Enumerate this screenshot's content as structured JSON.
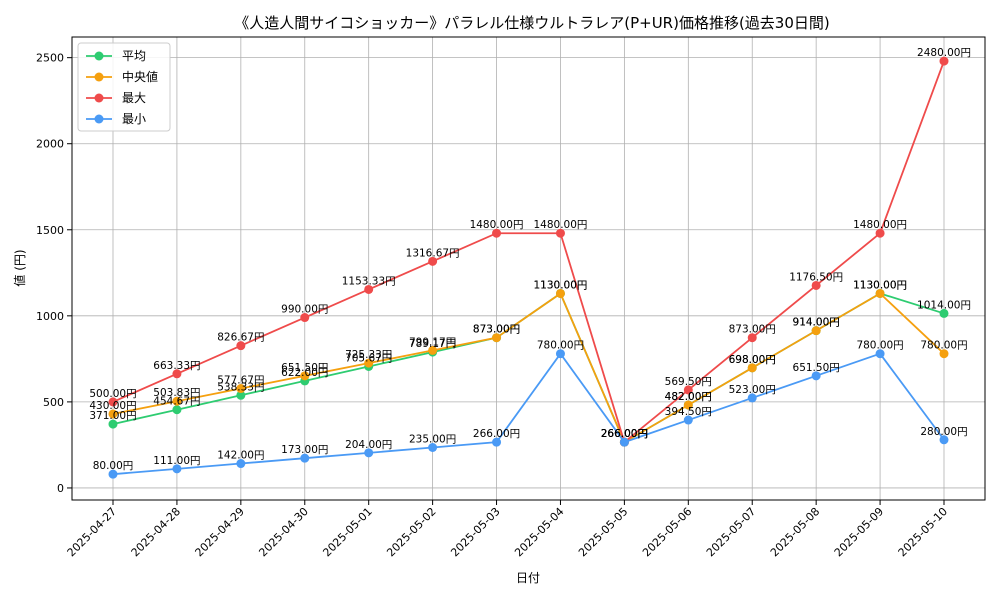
{
  "chart_data": {
    "type": "line",
    "title": "《人造人間サイコショッカー》パラレル仕様ウルトラレア(P+UR)価格推移(過去30日間)",
    "xlabel": "日付",
    "ylabel": "値 (円)",
    "ylim": [
      -70,
      2620
    ],
    "yticks": [
      0,
      500,
      1000,
      1500,
      2000,
      2500
    ],
    "grid": true,
    "legend_position": "top-left",
    "label_suffix": "円",
    "categories": [
      "2025-04-27",
      "2025-04-28",
      "2025-04-29",
      "2025-04-30",
      "2025-05-01",
      "2025-05-02",
      "2025-05-03",
      "2025-05-04",
      "2025-05-05",
      "2025-05-06",
      "2025-05-07",
      "2025-05-08",
      "2025-05-09",
      "2025-05-10"
    ],
    "series": [
      {
        "name": "平均",
        "color": "#2ecc71",
        "values": [
          371.0,
          454.67,
          538.33,
          622.0,
          705.67,
          789.17,
          873.0,
          1130.0,
          266.0,
          482.0,
          698.0,
          914.0,
          1130.0,
          1014.0
        ]
      },
      {
        "name": "中央値",
        "color": "#f5a00f",
        "values": [
          430.0,
          503.83,
          577.67,
          651.5,
          725.33,
          799.17,
          873.0,
          1130.0,
          266.0,
          482.0,
          698.0,
          914.0,
          1130.0,
          780.0
        ]
      },
      {
        "name": "最大",
        "color": "#ef4b4b",
        "values": [
          500.0,
          663.33,
          826.67,
          990.0,
          1153.33,
          1316.67,
          1480.0,
          1480.0,
          266.0,
          569.5,
          873.0,
          1176.5,
          1480.0,
          2480.0
        ]
      },
      {
        "name": "最小",
        "color": "#4a9af5",
        "values": [
          80.0,
          111.0,
          142.0,
          173.0,
          204.0,
          235.0,
          266.0,
          780.0,
          266.0,
          394.5,
          523.0,
          651.5,
          780.0,
          280.0
        ]
      }
    ]
  }
}
